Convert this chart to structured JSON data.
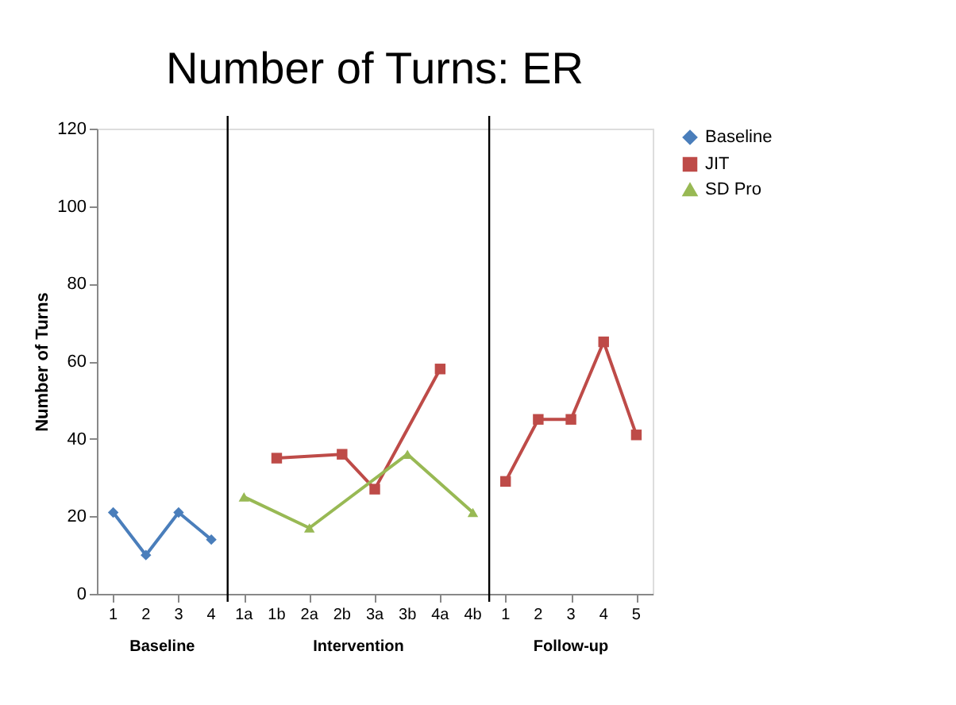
{
  "chart_data": {
    "type": "line",
    "title": "Number of Turns: ER",
    "ylabel": "Number of Turns",
    "categories": [
      "1",
      "2",
      "3",
      "4",
      "1a",
      "1b",
      "2a",
      "2b",
      "3a",
      "3b",
      "4a",
      "4b",
      "1",
      "2",
      "3",
      "4",
      "5"
    ],
    "series": [
      {
        "name": "Baseline",
        "color": "#4a7ebb",
        "marker": "diamond",
        "values": [
          21,
          10,
          21,
          14,
          null,
          null,
          null,
          null,
          null,
          null,
          null,
          null,
          null,
          null,
          null,
          null,
          null
        ]
      },
      {
        "name": "JIT",
        "color": "#be4b48",
        "marker": "square",
        "values": [
          null,
          null,
          null,
          null,
          null,
          35,
          null,
          36,
          27,
          null,
          58,
          null,
          29,
          45,
          45,
          65,
          41
        ]
      },
      {
        "name": "SD Pro",
        "color": "#98b954",
        "marker": "triangle",
        "values": [
          null,
          null,
          null,
          null,
          25,
          null,
          17,
          null,
          null,
          36,
          null,
          21,
          null,
          null,
          null,
          null,
          null
        ]
      }
    ],
    "ylim": [
      0,
      120
    ],
    "yticks": [
      0,
      20,
      40,
      60,
      80,
      100,
      120
    ],
    "grid": false,
    "legend": "right",
    "annotations": [
      "Baseline",
      "Intervention",
      "Follow-up"
    ]
  }
}
